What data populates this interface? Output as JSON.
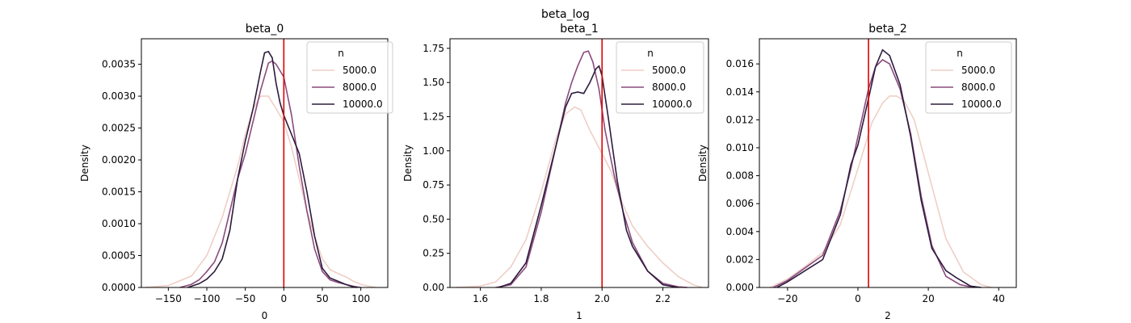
{
  "figure": {
    "suptitle": "beta_log"
  },
  "chart_data": [
    {
      "type": "line",
      "title": "beta_0",
      "xlabel": "0",
      "ylabel": "Density",
      "xlim": [
        -185,
        135
      ],
      "ylim": [
        0,
        0.0039
      ],
      "xticks": [
        -150,
        -100,
        -50,
        0,
        50,
        100
      ],
      "xtick_labels": [
        "−150",
        "−100",
        "−50",
        "0",
        "50",
        "100"
      ],
      "yticks": [
        0,
        0.0005,
        0.001,
        0.0015,
        0.002,
        0.0025,
        0.003,
        0.0035
      ],
      "ytick_labels": [
        "0.0000",
        "0.0005",
        "0.0010",
        "0.0015",
        "0.0020",
        "0.0025",
        "0.0030",
        "0.0035"
      ],
      "grid": false,
      "legend": {
        "title": "n",
        "placement": "top-right"
      },
      "reference_line": {
        "x": 0,
        "color": "#e00000"
      },
      "series": [
        {
          "name": "5000.0",
          "color": "#efcfc6",
          "x": [
            -180,
            -150,
            -120,
            -100,
            -80,
            -60,
            -50,
            -40,
            -30,
            -20,
            -10,
            0,
            10,
            20,
            30,
            40,
            50,
            60,
            70,
            80,
            90,
            100,
            110,
            120
          ],
          "y": [
            0.0,
            3e-05,
            0.00018,
            0.0005,
            0.0011,
            0.0019,
            0.0024,
            0.0028,
            0.003,
            0.003,
            0.0028,
            0.0026,
            0.0022,
            0.0017,
            0.0012,
            0.0008,
            0.00045,
            0.00028,
            0.00022,
            0.00017,
            0.0001,
            5e-05,
            2e-05,
            0.0
          ]
        },
        {
          "name": "8000.0",
          "color": "#8b4a7c",
          "x": [
            -135,
            -120,
            -110,
            -100,
            -90,
            -80,
            -70,
            -60,
            -50,
            -40,
            -30,
            -20,
            -15,
            -10,
            0,
            10,
            20,
            30,
            40,
            50,
            60,
            70,
            80,
            90,
            100
          ],
          "y": [
            0.0,
            5e-05,
            0.00012,
            0.00025,
            0.0004,
            0.0007,
            0.0012,
            0.0017,
            0.0021,
            0.0026,
            0.0031,
            0.00352,
            0.00355,
            0.0035,
            0.0033,
            0.0027,
            0.0019,
            0.0012,
            0.0006,
            0.00025,
            0.00012,
            8e-05,
            5e-05,
            2e-05,
            0.0
          ]
        },
        {
          "name": "10000.0",
          "color": "#2d1b3d",
          "x": [
            -125,
            -110,
            -100,
            -90,
            -80,
            -70,
            -60,
            -50,
            -40,
            -30,
            -25,
            -20,
            -15,
            -10,
            -5,
            0,
            10,
            20,
            30,
            40,
            50,
            60,
            70,
            80,
            90,
            95
          ],
          "y": [
            0.0,
            6e-05,
            0.00013,
            0.00025,
            0.00045,
            0.0009,
            0.0017,
            0.0023,
            0.0028,
            0.0034,
            0.00368,
            0.0037,
            0.0036,
            0.0032,
            0.0029,
            0.0027,
            0.0024,
            0.0021,
            0.0015,
            0.0008,
            0.0003,
            0.00015,
            0.0001,
            5e-05,
            1e-05,
            0.0
          ]
        }
      ]
    },
    {
      "type": "line",
      "title": "beta_1",
      "xlabel": "1",
      "ylabel": "Density",
      "xlim": [
        1.5,
        2.35
      ],
      "ylim": [
        0,
        1.82
      ],
      "xticks": [
        1.6,
        1.8,
        2.0,
        2.2
      ],
      "xtick_labels": [
        "1.6",
        "1.8",
        "2.0",
        "2.2"
      ],
      "yticks": [
        0,
        0.25,
        0.5,
        0.75,
        1.0,
        1.25,
        1.5,
        1.75
      ],
      "ytick_labels": [
        "0.00",
        "0.25",
        "0.50",
        "0.75",
        "1.00",
        "1.25",
        "1.50",
        "1.75"
      ],
      "grid": false,
      "legend": {
        "title": "n",
        "placement": "top-right"
      },
      "reference_line": {
        "x": 2.0,
        "color": "#e00000"
      },
      "series": [
        {
          "name": "5000.0",
          "color": "#efcfc6",
          "x": [
            1.52,
            1.6,
            1.65,
            1.7,
            1.75,
            1.8,
            1.85,
            1.88,
            1.91,
            1.93,
            1.96,
            2.0,
            2.03,
            2.06,
            2.1,
            2.15,
            2.2,
            2.25,
            2.3,
            2.33
          ],
          "y": [
            0.0,
            0.01,
            0.04,
            0.15,
            0.35,
            0.7,
            1.1,
            1.27,
            1.32,
            1.3,
            1.15,
            0.98,
            0.85,
            0.65,
            0.45,
            0.3,
            0.18,
            0.08,
            0.02,
            0.0
          ]
        },
        {
          "name": "8000.0",
          "color": "#8b4a7c",
          "x": [
            1.65,
            1.7,
            1.75,
            1.8,
            1.85,
            1.88,
            1.9,
            1.92,
            1.94,
            1.955,
            1.97,
            1.99,
            2.01,
            2.04,
            2.07,
            2.1,
            2.15,
            2.2,
            2.25,
            2.28
          ],
          "y": [
            0.0,
            0.02,
            0.15,
            0.55,
            1.05,
            1.35,
            1.5,
            1.62,
            1.72,
            1.73,
            1.65,
            1.45,
            1.15,
            0.82,
            0.55,
            0.33,
            0.12,
            0.03,
            0.005,
            0.0
          ]
        },
        {
          "name": "10000.0",
          "color": "#2d1b3d",
          "x": [
            1.66,
            1.7,
            1.75,
            1.8,
            1.85,
            1.88,
            1.9,
            1.92,
            1.94,
            1.96,
            1.98,
            1.99,
            2.0,
            2.02,
            2.05,
            2.08,
            2.1,
            2.15,
            2.2,
            2.25
          ],
          "y": [
            0.0,
            0.03,
            0.18,
            0.6,
            1.05,
            1.32,
            1.42,
            1.43,
            1.42,
            1.5,
            1.6,
            1.62,
            1.55,
            1.25,
            0.78,
            0.42,
            0.3,
            0.12,
            0.02,
            0.0
          ]
        }
      ]
    },
    {
      "type": "line",
      "title": "beta_2",
      "xlabel": "2",
      "ylabel": "Density",
      "xlim": [
        -28,
        45
      ],
      "ylim": [
        0,
        0.0178
      ],
      "xticks": [
        -20,
        0,
        20,
        40
      ],
      "xtick_labels": [
        "−20",
        "0",
        "20",
        "40"
      ],
      "yticks": [
        0,
        0.002,
        0.004,
        0.006,
        0.008,
        0.01,
        0.012,
        0.014,
        0.016
      ],
      "ytick_labels": [
        "0.000",
        "0.002",
        "0.004",
        "0.006",
        "0.008",
        "0.010",
        "0.012",
        "0.014",
        "0.016"
      ],
      "grid": false,
      "legend": {
        "title": "n",
        "placement": "top-right"
      },
      "reference_line": {
        "x": 3,
        "color": "#e00000"
      },
      "series": [
        {
          "name": "5000.0",
          "color": "#efcfc6",
          "x": [
            -25,
            -20,
            -15,
            -10,
            -5,
            0,
            4,
            7,
            9,
            11,
            13,
            16,
            20,
            25,
            30,
            35,
            38
          ],
          "y": [
            0.0,
            0.0006,
            0.0015,
            0.0025,
            0.0045,
            0.0085,
            0.0118,
            0.0132,
            0.0137,
            0.0137,
            0.0134,
            0.012,
            0.0082,
            0.0035,
            0.0011,
            0.0002,
            0.0
          ]
        },
        {
          "name": "8000.0",
          "color": "#8b4a7c",
          "x": [
            -24,
            -20,
            -15,
            -10,
            -5,
            -2,
            0,
            3,
            5,
            7,
            9,
            12,
            15,
            18,
            21,
            25,
            29,
            33
          ],
          "y": [
            0.0,
            0.0005,
            0.0014,
            0.0023,
            0.0055,
            0.0085,
            0.0108,
            0.0142,
            0.0158,
            0.0163,
            0.016,
            0.0142,
            0.011,
            0.0065,
            0.003,
            0.0008,
            0.0002,
            0.0
          ]
        },
        {
          "name": "10000.0",
          "color": "#2d1b3d",
          "x": [
            -23,
            -20,
            -15,
            -10,
            -5,
            -2,
            0,
            3,
            5,
            7,
            9,
            12,
            15,
            18,
            21,
            25,
            28,
            32,
            35
          ],
          "y": [
            0.0,
            0.0004,
            0.0012,
            0.002,
            0.0052,
            0.0088,
            0.0102,
            0.0135,
            0.0158,
            0.017,
            0.0166,
            0.0145,
            0.0108,
            0.0062,
            0.0028,
            0.0012,
            0.0007,
            0.0001,
            0.0
          ]
        }
      ]
    }
  ]
}
